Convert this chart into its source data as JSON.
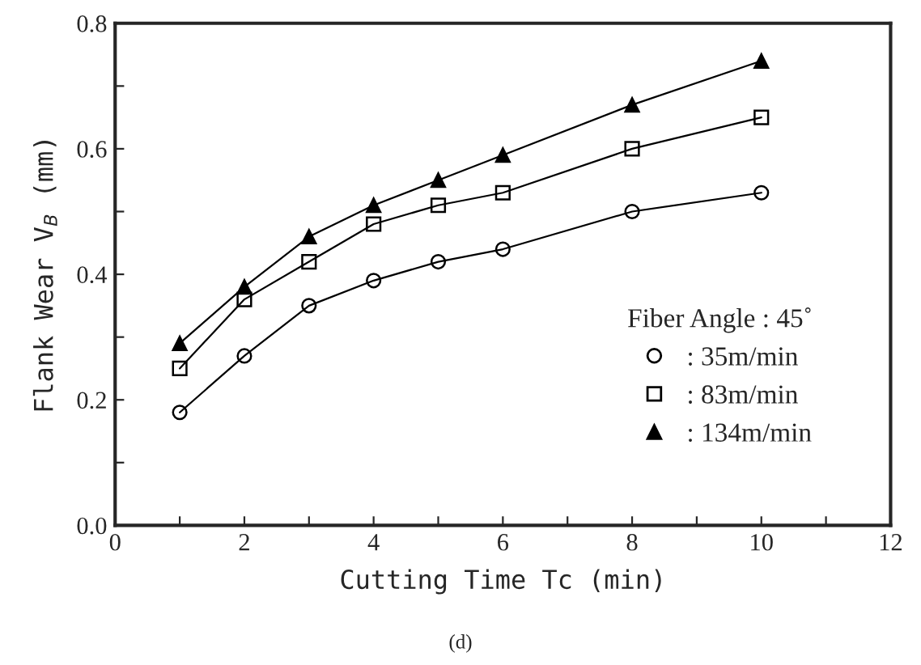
{
  "chart_data": {
    "type": "line",
    "xlabel": "Cutting Time Tc (min)",
    "ylabel": "Flank Wear V$_{B}$ (mm)",
    "legend_title": "Fiber Angle : 45˚",
    "x": [
      1,
      2,
      3,
      4,
      5,
      6,
      8,
      10
    ],
    "series": [
      {
        "name": ": 35m/min",
        "color": "#000000",
        "marker": "circle",
        "values": [
          0.18,
          0.27,
          0.35,
          0.39,
          0.42,
          0.44,
          0.5,
          0.53
        ]
      },
      {
        "name": ": 83m/min",
        "color": "#000000",
        "marker": "square",
        "values": [
          0.25,
          0.36,
          0.42,
          0.48,
          0.51,
          0.53,
          0.6,
          0.65
        ]
      },
      {
        "name": ": 134m/min",
        "color": "#000000",
        "marker": "triangle",
        "values": [
          0.29,
          0.38,
          0.46,
          0.51,
          0.55,
          0.59,
          0.67,
          0.74
        ]
      }
    ],
    "xlim": [
      0,
      12
    ],
    "ylim": [
      0,
      0.8
    ],
    "xticks": [
      0,
      {
        "value": 1,
        "label": null
      },
      2,
      {
        "value": 3,
        "label": null
      },
      4,
      {
        "value": 5,
        "label": null
      },
      6,
      {
        "value": 7,
        "label": null
      },
      8,
      {
        "value": 9,
        "label": null
      },
      10,
      {
        "value": 11,
        "label": null
      },
      12
    ],
    "yticks": [
      {
        "value": 0,
        "label": "0.0"
      },
      {
        "value": 0.1,
        "label": null
      },
      0.2,
      {
        "value": 0.3,
        "label": null
      },
      0.4,
      {
        "value": 0.5,
        "label": null
      },
      0.6,
      {
        "value": 0.7,
        "label": null
      },
      0.8
    ],
    "legend": "bottom right",
    "grid": false,
    "line_style": "solid",
    "annotations": [
      "(d)"
    ]
  }
}
